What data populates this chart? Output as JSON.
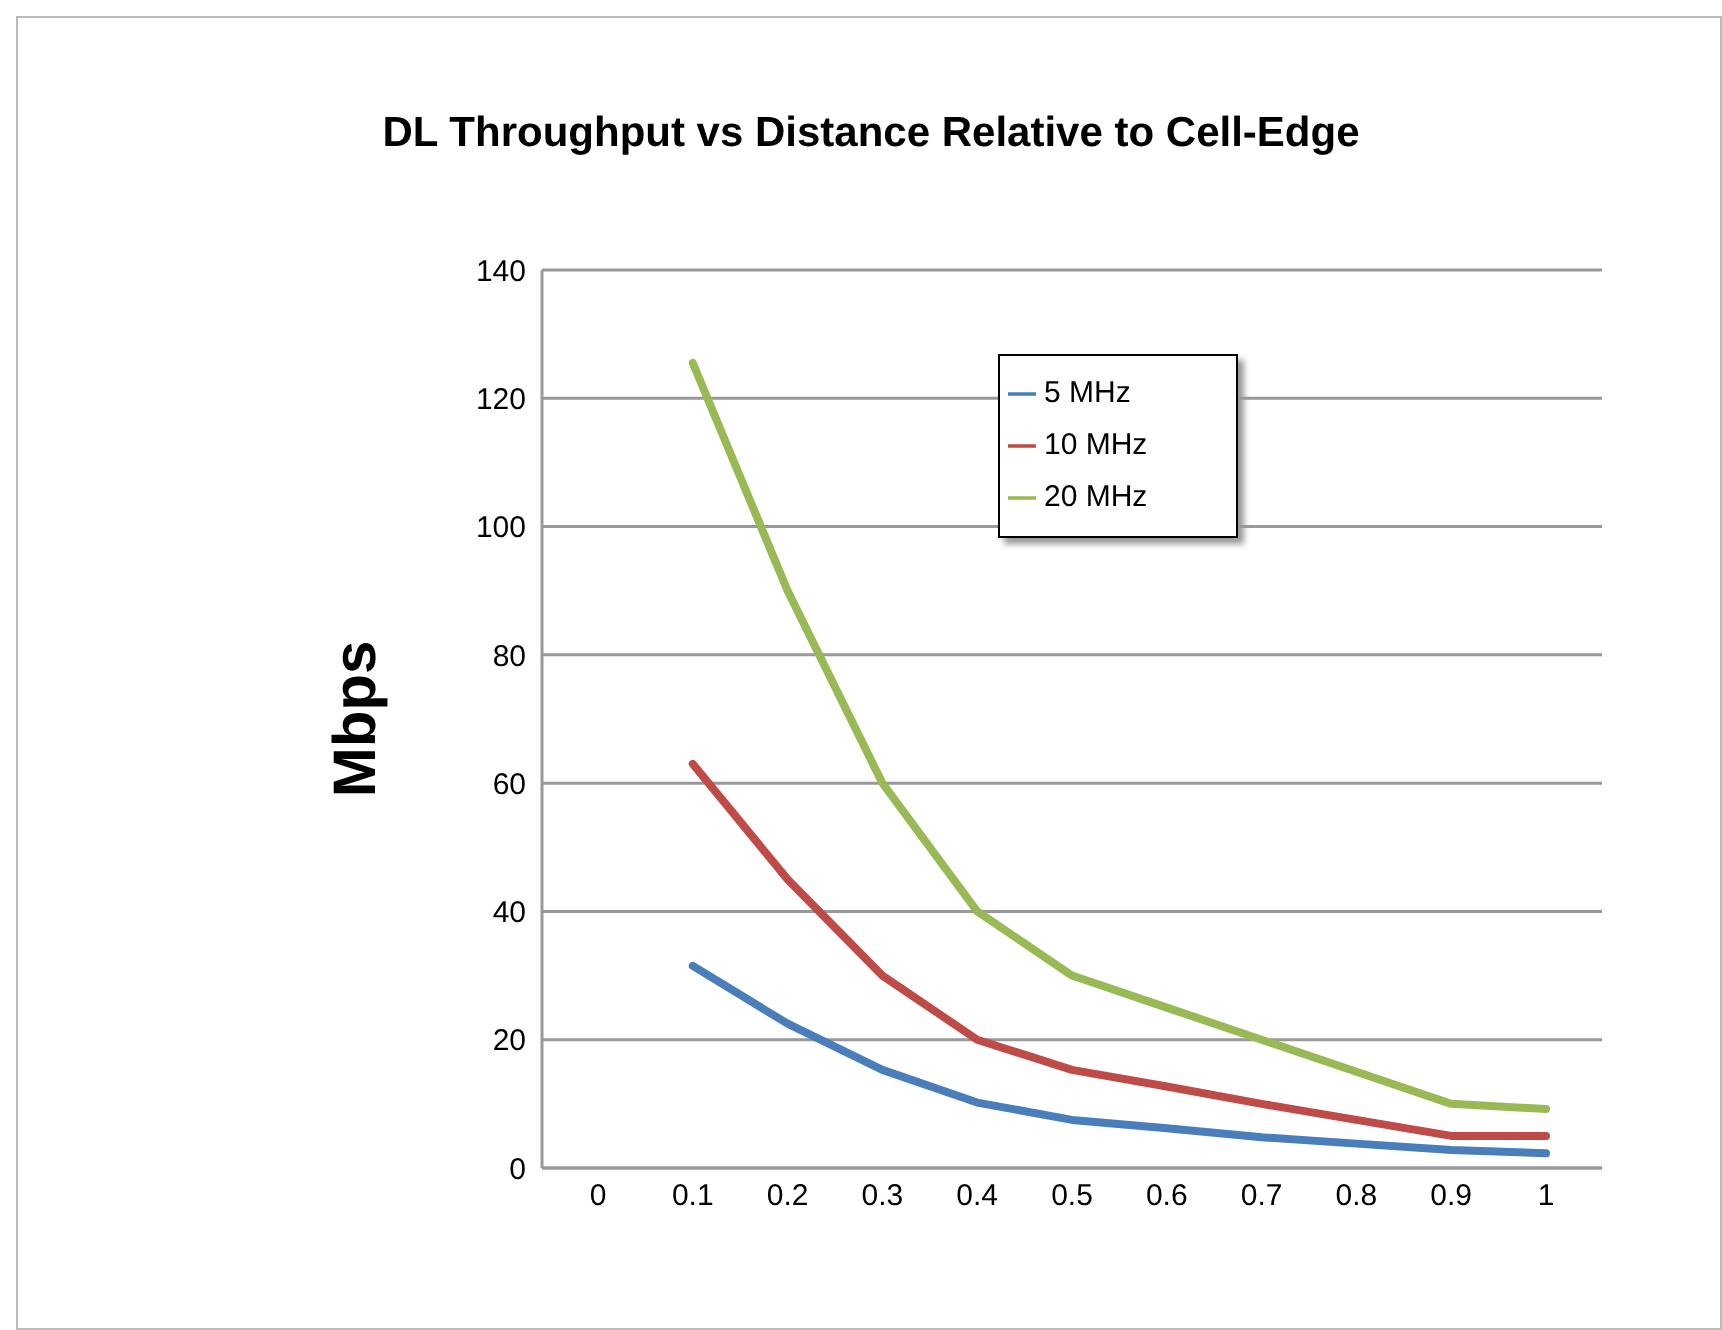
{
  "chart_data": {
    "type": "line",
    "title": "DL Throughput vs Distance Relative to Cell-Edge",
    "ylabel": "Mbps",
    "categories": [
      "0",
      "0.1",
      "0.2",
      "0.3",
      "0.4",
      "0.5",
      "0.6",
      "0.7",
      "0.8",
      "0.9",
      "1"
    ],
    "series": [
      {
        "name": "5 MHz",
        "color": "#4a7ebb",
        "values": [
          null,
          31.5,
          22.5,
          15.3,
          10.2,
          7.5,
          6.2,
          4.8,
          3.8,
          2.8,
          2.3
        ]
      },
      {
        "name": "10 MHz",
        "color": "#be4b48",
        "values": [
          null,
          63,
          45,
          30,
          20,
          15.3,
          12.7,
          10,
          7.5,
          5,
          5
        ]
      },
      {
        "name": "20 MHz",
        "color": "#98b954",
        "values": [
          null,
          125.5,
          90,
          60,
          40,
          30,
          25,
          20,
          15,
          10,
          9.2
        ]
      }
    ],
    "ylim": [
      0,
      140
    ],
    "yticks": [
      0,
      20,
      40,
      60,
      80,
      100,
      120,
      140
    ],
    "grid": "y",
    "legend": "top right",
    "marker": "none",
    "line_style": "solid"
  }
}
